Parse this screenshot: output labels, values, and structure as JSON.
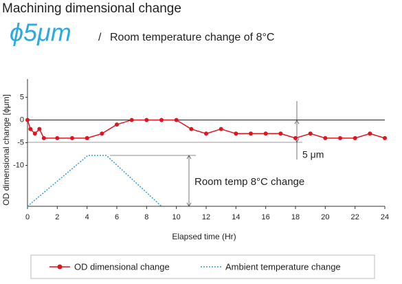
{
  "chart_data": {
    "type": "line",
    "title": "Machining dimensional change",
    "headline": "ϕ5μm",
    "separator": "/",
    "subtitle": "Room temperature change of 8°C",
    "xlabel": "Elapsed time (Hr)",
    "ylabel": "OD dimensional change [ϕμm]",
    "xlim": [
      0,
      24
    ],
    "xticks": [
      0,
      2,
      4,
      6,
      8,
      10,
      12,
      14,
      16,
      18,
      20,
      22,
      24
    ],
    "ylim": [
      -19,
      9
    ],
    "yticks": [
      5,
      0,
      -5,
      -10
    ],
    "y2lim": [
      0,
      20
    ],
    "annotations": [
      "5 μm",
      "Room temp 8°C change"
    ],
    "series": [
      {
        "name": "OD dimensional change",
        "color": "#e0141e",
        "x": [
          0,
          0.2,
          0.5,
          0.8,
          1.1,
          2,
          3,
          4,
          5,
          6,
          7,
          8,
          9,
          10,
          11,
          12,
          13,
          14,
          15,
          16,
          17,
          18,
          19,
          20,
          21,
          22,
          23,
          24
        ],
        "values": [
          0,
          -2,
          -3,
          -2,
          -4,
          -4,
          -4,
          -4,
          -3,
          -1,
          0,
          0,
          0,
          0,
          -2,
          -3,
          -2,
          -3,
          -3,
          -3,
          -3,
          -4,
          -3,
          -4,
          -4,
          -4,
          -3,
          -4
        ]
      },
      {
        "name": "Ambient temperature change",
        "color": "#2a9fd8",
        "axis": "y2",
        "dashed": true,
        "x": [
          0,
          4.06,
          5.3,
          9
        ],
        "values": [
          0,
          8,
          8,
          0
        ]
      }
    ]
  }
}
